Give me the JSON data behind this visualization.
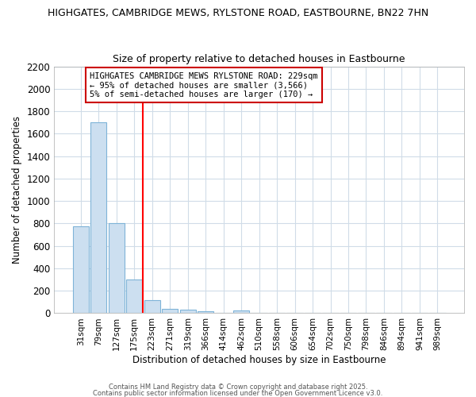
{
  "title1": "HIGHGATES, CAMBRIDGE MEWS, RYLSTONE ROAD, EASTBOURNE, BN22 7HN",
  "title2": "Size of property relative to detached houses in Eastbourne",
  "xlabel": "Distribution of detached houses by size in Eastbourne",
  "ylabel": "Number of detached properties",
  "categories": [
    "31sqm",
    "79sqm",
    "127sqm",
    "175sqm",
    "223sqm",
    "271sqm",
    "319sqm",
    "366sqm",
    "414sqm",
    "462sqm",
    "510sqm",
    "558sqm",
    "606sqm",
    "654sqm",
    "702sqm",
    "750sqm",
    "798sqm",
    "846sqm",
    "894sqm",
    "941sqm",
    "989sqm"
  ],
  "values": [
    775,
    1700,
    800,
    300,
    120,
    40,
    30,
    15,
    0,
    25,
    0,
    0,
    0,
    0,
    0,
    0,
    0,
    0,
    0,
    0,
    0
  ],
  "bar_color": "#ccdff0",
  "bar_edge_color": "#7fb4d8",
  "red_line_index": 4,
  "annotation_line1": "HIGHGATES CAMBRIDGE MEWS RYLSTONE ROAD: 229sqm",
  "annotation_line2": "← 95% of detached houses are smaller (3,566)",
  "annotation_line3": "5% of semi-detached houses are larger (170) →",
  "annotation_box_color": "#ffffff",
  "annotation_box_edge_color": "#cc0000",
  "ylim": [
    0,
    2200
  ],
  "yticks": [
    0,
    200,
    400,
    600,
    800,
    1000,
    1200,
    1400,
    1600,
    1800,
    2000,
    2200
  ],
  "plot_bg_color": "#ffffff",
  "fig_bg_color": "#ffffff",
  "grid_color": "#d0dce8",
  "footer1": "Contains HM Land Registry data © Crown copyright and database right 2025.",
  "footer2": "Contains public sector information licensed under the Open Government Licence v3.0."
}
